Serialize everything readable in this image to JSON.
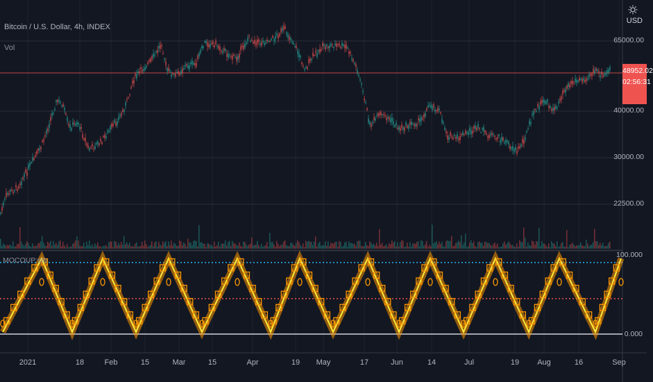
{
  "header": {
    "symbol_title": "Bitcoin / U.S. Dollar, 4h, INDEX",
    "volume_label": "Vol",
    "oscillator_label": "MOCOUP:sth"
  },
  "price_axis": {
    "currency": "USD",
    "ticks": [
      "65000.00",
      "40000.00",
      "30000.00",
      "22500.00"
    ]
  },
  "last_price": {
    "value": "48952.02",
    "countdown": "02:56:31",
    "color": "#ef5350"
  },
  "oscillator_axis": {
    "ticks": [
      "100.000",
      "0.000"
    ]
  },
  "time_axis": {
    "ticks": [
      "2021",
      "18",
      "Feb",
      "15",
      "Mar",
      "15",
      "Apr",
      "19",
      "May",
      "17",
      "Jun",
      "14",
      "Jul",
      "19",
      "Aug",
      "16",
      "Sep"
    ]
  },
  "colors": {
    "background": "#131722",
    "grid": "#2a2e39",
    "candle_up": "#26a69a",
    "candle_down": "#ef5350",
    "oscillator_line": "#ffeb3b",
    "oscillator_fill": "#ff9800",
    "upper_band": "#29b6f6",
    "mid_band": "#ef5350",
    "zero_line": "#d1d4dc"
  },
  "icons": {
    "settings": "gear-icon"
  }
}
